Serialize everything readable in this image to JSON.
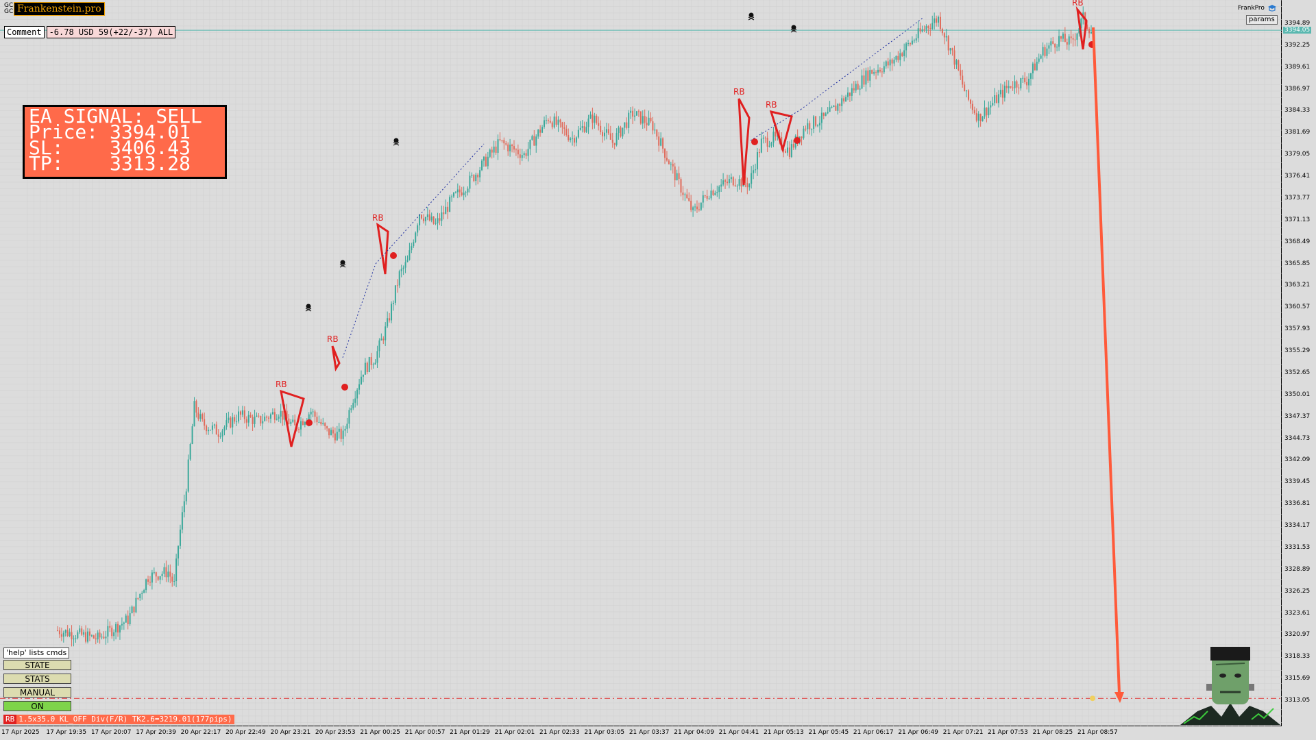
{
  "header": {
    "symbol_lines": [
      "GC",
      "GC..."
    ],
    "brand": "Frankenstein.pro",
    "comment_label": "Comment",
    "pnl_text": "-6.78 USD 59(+22/-37) ALL"
  },
  "signal_panel": {
    "line1": "EA SIGNAL: SELL",
    "price_label": "Price:",
    "price_value": "3394.01",
    "sl_label": "SL:",
    "sl_value": "3406.43",
    "tp_label": "TP:",
    "tp_value": "3313.28"
  },
  "top_right": {
    "brand_label": "FrankPro",
    "params_label": "params",
    "current_price": "3394.05"
  },
  "controls": {
    "help_label": "'help' lists cmds",
    "buttons": [
      "STATE",
      "STATS",
      "MANUAL",
      "ON"
    ]
  },
  "status_bar": {
    "tag": "RB",
    "text": "1.5x35.0 KL_OFF Div(F/R) TK2.6=3219.01(177pips)"
  },
  "chart_data": {
    "type": "candlestick",
    "price_axis_ticks": [
      "3394.89",
      "3392.25",
      "3389.61",
      "3386.97",
      "3384.33",
      "3381.69",
      "3379.05",
      "3376.41",
      "3373.77",
      "3371.13",
      "3368.49",
      "3365.85",
      "3363.21",
      "3360.57",
      "3357.93",
      "3355.29",
      "3352.65",
      "3350.01",
      "3347.37",
      "3344.73",
      "3342.09",
      "3339.45",
      "3336.81",
      "3334.17",
      "3331.53",
      "3328.89",
      "3326.25",
      "3323.61",
      "3320.97",
      "3318.33",
      "3315.69",
      "3313.05"
    ],
    "time_axis_ticks": [
      "17 Apr 2025",
      "17 Apr 19:35",
      "17 Apr 20:07",
      "17 Apr 20:39",
      "20 Apr 22:17",
      "20 Apr 22:49",
      "20 Apr 23:21",
      "20 Apr 23:53",
      "21 Apr 00:25",
      "21 Apr 00:57",
      "21 Apr 01:29",
      "21 Apr 02:01",
      "21 Apr 02:33",
      "21 Apr 03:05",
      "21 Apr 03:37",
      "21 Apr 04:09",
      "21 Apr 04:41",
      "21 Apr 05:13",
      "21 Apr 05:45",
      "21 Apr 06:17",
      "21 Apr 06:49",
      "21 Apr 07:21",
      "21 Apr 07:53",
      "21 Apr 08:25",
      "21 Apr 08:57"
    ],
    "pattern_label": "RB",
    "ylim": [
      3313.05,
      3394.89
    ],
    "tp_level": 3313.28,
    "current_level": 3394.05,
    "price_path": [
      [
        0,
        3321.5
      ],
      [
        20,
        3320.5
      ],
      [
        35,
        3322.8
      ],
      [
        45,
        3328.0
      ],
      [
        55,
        3328.6
      ],
      [
        58,
        3327.0
      ],
      [
        60,
        3331.8
      ],
      [
        64,
        3339.0
      ],
      [
        68,
        3348.5
      ],
      [
        72,
        3346.5
      ],
      [
        80,
        3345.5
      ],
      [
        90,
        3347.5
      ],
      [
        100,
        3346.8
      ],
      [
        110,
        3348.0
      ],
      [
        118,
        3346.0
      ],
      [
        126,
        3348.0
      ],
      [
        134,
        3345.5
      ],
      [
        142,
        3345.0
      ],
      [
        146,
        3349.0
      ],
      [
        152,
        3353.0
      ],
      [
        158,
        3354.5
      ],
      [
        164,
        3358.5
      ],
      [
        170,
        3364.5
      ],
      [
        174,
        3366.0
      ],
      [
        180,
        3372.0
      ],
      [
        188,
        3370.5
      ],
      [
        196,
        3373.5
      ],
      [
        204,
        3375.5
      ],
      [
        212,
        3378.0
      ],
      [
        220,
        3380.5
      ],
      [
        232,
        3379.0
      ],
      [
        244,
        3383.5
      ],
      [
        256,
        3381.0
      ],
      [
        266,
        3383.5
      ],
      [
        276,
        3380.5
      ],
      [
        286,
        3384.0
      ],
      [
        296,
        3382.5
      ],
      [
        308,
        3376.0
      ],
      [
        316,
        3372.0
      ],
      [
        324,
        3374.5
      ],
      [
        336,
        3376.0
      ],
      [
        344,
        3375.5
      ],
      [
        350,
        3380.5
      ],
      [
        356,
        3381.0
      ],
      [
        364,
        3379.5
      ],
      [
        372,
        3382.5
      ],
      [
        382,
        3383.5
      ],
      [
        392,
        3386.0
      ],
      [
        404,
        3389.0
      ],
      [
        414,
        3390.0
      ],
      [
        424,
        3392.5
      ],
      [
        432,
        3394.5
      ],
      [
        438,
        3395.5
      ],
      [
        446,
        3390.5
      ],
      [
        452,
        3386.0
      ],
      [
        458,
        3383.5
      ],
      [
        466,
        3385.5
      ],
      [
        474,
        3387.5
      ],
      [
        482,
        3388.0
      ],
      [
        490,
        3391.5
      ],
      [
        498,
        3393.0
      ],
      [
        504,
        3392.5
      ],
      [
        510,
        3395.5
      ],
      [
        514,
        3394.0
      ]
    ]
  }
}
